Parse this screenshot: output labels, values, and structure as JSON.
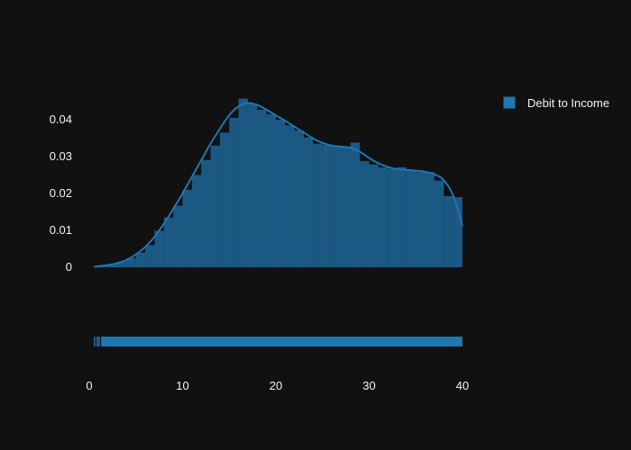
{
  "chart_data": {
    "type": "histogram",
    "series_name": "Debit to Income",
    "color": "#1f77b4",
    "background": "#111111",
    "legend_position": "top-right",
    "grid": false,
    "xlim": [
      0,
      40
    ],
    "ylim": [
      0,
      0.045
    ],
    "x_ticks": [
      0,
      10,
      20,
      30,
      40
    ],
    "y_ticks": [
      0,
      0.01,
      0.02,
      0.03,
      0.04
    ],
    "x_tick_labels": [
      "0",
      "10",
      "20",
      "30",
      "40"
    ],
    "y_tick_labels": [
      "0",
      "0.01",
      "0.02",
      "0.03",
      "0.04"
    ],
    "bin_width": 1,
    "bin_starts": [
      0,
      1,
      2,
      3,
      4,
      5,
      6,
      7,
      8,
      9,
      10,
      11,
      12,
      13,
      14,
      15,
      16,
      17,
      18,
      19,
      20,
      21,
      22,
      23,
      24,
      25,
      26,
      27,
      28,
      29,
      30,
      31,
      32,
      33,
      34,
      35,
      36,
      37,
      38,
      39
    ],
    "bin_density": [
      0.0003,
      0.0005,
      0.0008,
      0.0015,
      0.0025,
      0.004,
      0.006,
      0.0099,
      0.0135,
      0.0167,
      0.021,
      0.025,
      0.0291,
      0.033,
      0.0365,
      0.0405,
      0.0457,
      0.0444,
      0.0427,
      0.0415,
      0.04,
      0.0385,
      0.0371,
      0.0352,
      0.0335,
      0.0332,
      0.0328,
      0.0327,
      0.0338,
      0.0288,
      0.0279,
      0.0271,
      0.0267,
      0.0271,
      0.0263,
      0.0258,
      0.0258,
      0.0235,
      0.0193,
      0.019
    ],
    "kde_x": [
      0.5,
      1,
      2,
      3,
      4,
      5,
      6,
      7,
      8,
      9,
      10,
      11,
      12,
      13,
      14,
      15,
      16,
      17,
      18,
      19,
      20,
      21,
      22,
      23,
      24,
      25,
      26,
      27,
      28,
      29,
      30,
      31,
      32,
      33,
      34,
      35,
      36,
      37,
      38,
      39,
      40
    ],
    "kde_y": [
      0.0001,
      0.0003,
      0.0006,
      0.0011,
      0.002,
      0.0035,
      0.0055,
      0.0083,
      0.0118,
      0.0158,
      0.02,
      0.0245,
      0.029,
      0.0335,
      0.0375,
      0.0412,
      0.0436,
      0.0445,
      0.044,
      0.0427,
      0.0412,
      0.0397,
      0.0381,
      0.0365,
      0.0349,
      0.0337,
      0.033,
      0.0327,
      0.0324,
      0.0313,
      0.0296,
      0.0282,
      0.0272,
      0.0266,
      0.0264,
      0.0262,
      0.0259,
      0.0252,
      0.0236,
      0.0195,
      0.0112
    ],
    "rug_range": [
      0.5,
      40
    ]
  }
}
